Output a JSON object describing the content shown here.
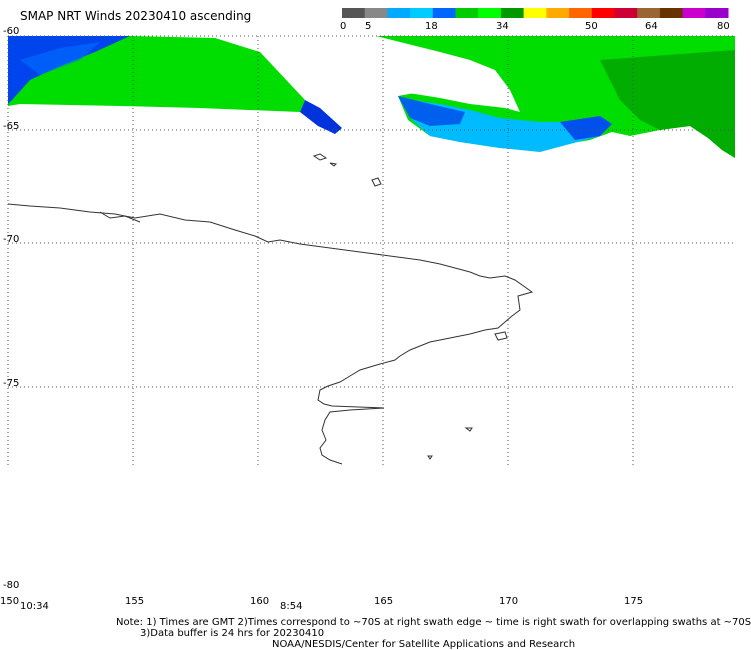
{
  "title": "SMAP NRT Winds 20230410 ascending",
  "colorbar": {
    "labels": [
      "0",
      "5",
      "18",
      "34",
      "50",
      "64",
      "80"
    ],
    "colors": [
      "#555555",
      "#888888",
      "#00aaff",
      "#00ccff",
      "#0066ff",
      "#00cc00",
      "#00ff00",
      "#009900",
      "#ffff00",
      "#ffaa00",
      "#ff6600",
      "#ff0000",
      "#cc0033",
      "#996633",
      "#663300",
      "#cc00cc",
      "#9900cc"
    ]
  },
  "map": {
    "lat_labels": [
      "-60",
      "-65",
      "-70",
      "-75",
      "-80"
    ],
    "lon_labels": [
      "150",
      "155",
      "160",
      "165",
      "170",
      "175"
    ],
    "time_labels": [
      "10:34",
      "8:54"
    ],
    "wind_colors": {
      "low": "#0044ee",
      "calm": "#00bbff",
      "moderate": "#00dd00",
      "strong": "#009900"
    }
  },
  "notes": {
    "line1": "Note: 1) Times are GMT 2)Times correspond to ~70S at right swath edge ~ time is right swath for overlapping swaths at ~70S",
    "line2": "3)Data buffer is 24 hrs for 20230410",
    "line3": "NOAA/NESDIS/Center for Satellite Applications and Research"
  }
}
